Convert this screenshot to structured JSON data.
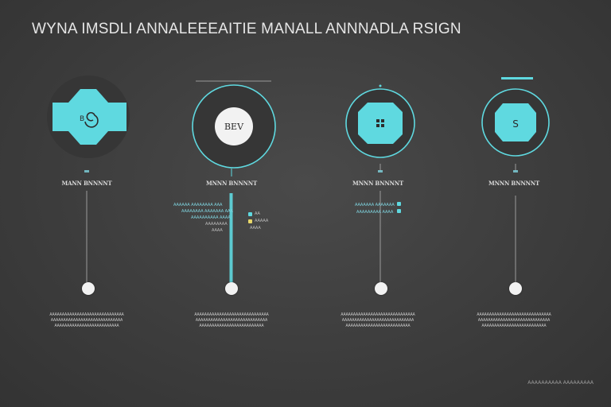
{
  "title": "WYNA IMSDLI ANNALEEEAITIE MANALL ANNNADLA RSIGN",
  "colors": {
    "accent": "#5fd9e0",
    "node": "#f2f2f2",
    "background": "#3d3d3d",
    "yellow": "#e8d86a"
  },
  "steps": [
    {
      "icon": "spiral-icon",
      "icon_text": "",
      "index_label": "",
      "label": "MANN BNNNNT",
      "description": [
        "AAAAAAAAAAAAAAAAAAAAAAAAAAAAAA",
        "AAAAAAAAAAAAAAAAAAAAAAAAAAAAA",
        "AAAAAAAAAAAAAAAAAAAAAAAAAA"
      ]
    },
    {
      "icon": "circle-badge-icon",
      "icon_text": "BEV",
      "index_label": "",
      "label": "MNNN BNNNNT",
      "description": [
        "AAAAAAAAAAAAAAAAAAAAAAAAAAAAAA",
        "AAAAAAAAAAAAAAAAAAAAAAAAAAAAA",
        "AAAAAAAAAAAAAAAAAAAAAAAAAA"
      ],
      "notes_left": [
        "AAAAAA AAAAAAAA AAA",
        "AAAAAAAA AAAAAAA AAA",
        "AAAAAAAAAA AAAA",
        "AAAAAAAA",
        "AAAA"
      ],
      "notes_right": [
        "AA",
        "AAAAA",
        "AAAA"
      ]
    },
    {
      "icon": "grid-icon",
      "icon_text": "",
      "index_label": "",
      "label": "MNNN BNNNNT",
      "description": [
        "AAAAAAAAAAAAAAAAAAAAAAAAAAAAAA",
        "AAAAAAAAAAAAAAAAAAAAAAAAAAAAA",
        "AAAAAAAAAAAAAAAAAAAAAAAAAA"
      ],
      "notes_left": [
        "AAAAAAA AAAAAAA",
        "AAAAAAAAA AAAA"
      ]
    },
    {
      "icon": "s-badge-icon",
      "icon_text": "S",
      "index_label": "",
      "label": "MNNN BNNNNT",
      "description": [
        "AAAAAAAAAAAAAAAAAAAAAAAAAAAAAA",
        "AAAAAAAAAAAAAAAAAAAAAAAAAAAAA",
        "AAAAAAAAAAAAAAAAAAAAAAAAAA"
      ]
    }
  ],
  "footer": "AAAAAAAAAA AAAAAAAAA"
}
